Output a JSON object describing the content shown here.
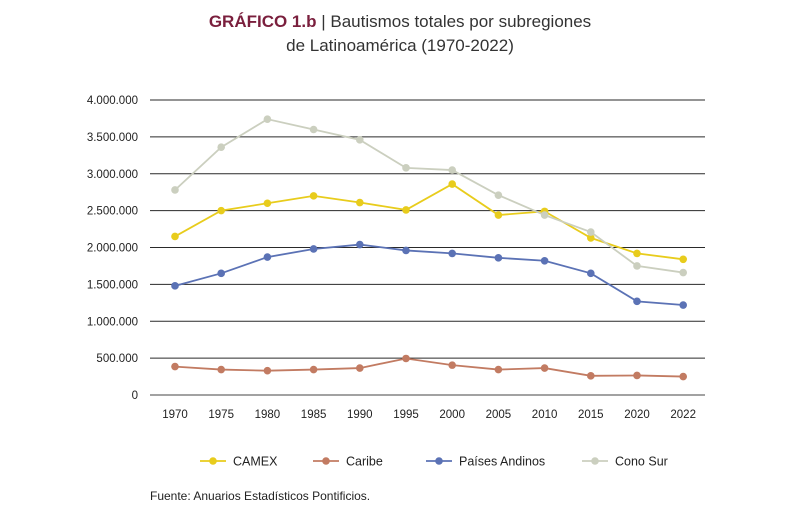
{
  "title": {
    "label": "GRÁFICO 1.b",
    "separator": "|",
    "line1": "Bautismos totales por subregiones",
    "line2": "de Latinoamérica (1970-2022)"
  },
  "source": "Fuente: Anuarios Estadísticos Pontificios.",
  "chart_data": {
    "type": "line",
    "title": "Bautismos totales por subregiones de Latinoamérica (1970-2022)",
    "xlabel": "",
    "ylabel": "",
    "categories": [
      "1970",
      "1975",
      "1980",
      "1985",
      "1990",
      "1995",
      "2000",
      "2005",
      "2010",
      "2015",
      "2020",
      "2022"
    ],
    "ylim": [
      0,
      4000000
    ],
    "yticks": [
      0,
      500000,
      1000000,
      1500000,
      2000000,
      2500000,
      3000000,
      3500000,
      4000000
    ],
    "ytick_labels": [
      "0",
      "500.000",
      "1.000.000",
      "1.500.000",
      "2.000.000",
      "2.500.000",
      "3.000.000",
      "3.500.000",
      "4.000.000"
    ],
    "grid": true,
    "legend_position": "bottom",
    "series": [
      {
        "name": "CAMEX",
        "color": "#e8cc1c",
        "values": [
          2150000,
          2500000,
          2600000,
          2700000,
          2610000,
          2510000,
          2860000,
          2440000,
          2490000,
          2130000,
          1920000,
          1840000
        ]
      },
      {
        "name": "Caribe",
        "color": "#c27b62",
        "values": [
          385000,
          345000,
          330000,
          345000,
          365000,
          495000,
          405000,
          345000,
          365000,
          260000,
          265000,
          250000
        ]
      },
      {
        "name": "Países Andinos",
        "color": "#5b72b5",
        "values": [
          1480000,
          1650000,
          1870000,
          1980000,
          2040000,
          1960000,
          1920000,
          1860000,
          1820000,
          1650000,
          1270000,
          1220000
        ]
      },
      {
        "name": "Cono Sur",
        "color": "#cbcfbf",
        "values": [
          2780000,
          3360000,
          3740000,
          3600000,
          3460000,
          3080000,
          3050000,
          2710000,
          2440000,
          2210000,
          1750000,
          1660000
        ]
      }
    ]
  }
}
